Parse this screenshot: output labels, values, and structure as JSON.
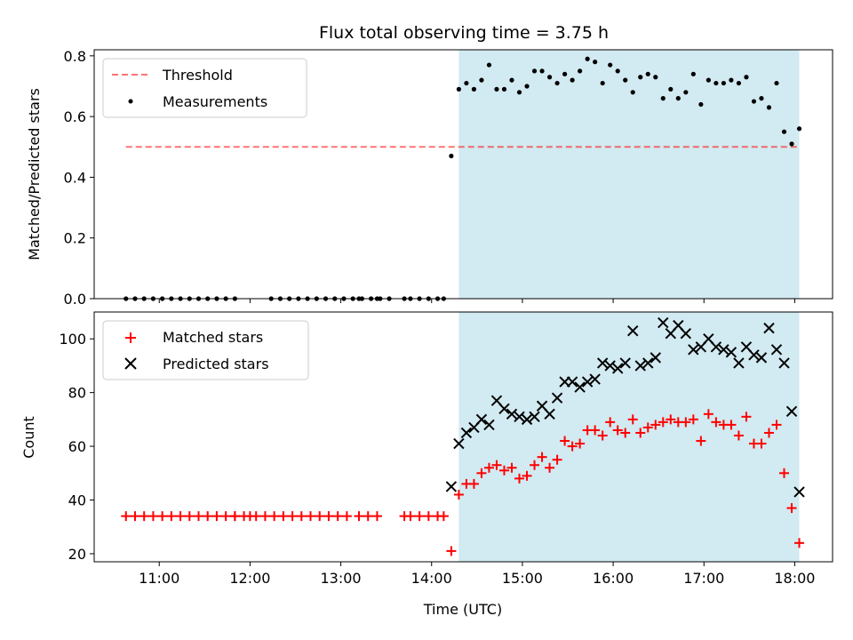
{
  "chart_data": [
    {
      "type": "scatter",
      "title": "Flux total observing time = 3.75 h",
      "xlabel": "",
      "ylabel": "Matched/Predicted stars",
      "ylim": [
        0,
        0.82
      ],
      "xlim": [
        "10:17",
        "18:25"
      ],
      "yticks": [
        "0.0",
        "0.2",
        "0.4",
        "0.6",
        "0.8"
      ],
      "legend_position": "top-left",
      "shaded_span": [
        "14:18",
        "18:03"
      ],
      "shade_color": "#add8e6",
      "threshold": {
        "name": "Threshold",
        "value": 0.5,
        "x_range": [
          "10:38",
          "18:03"
        ],
        "color": "#ff0000",
        "style": "dashed"
      },
      "series": [
        {
          "name": "Measurements",
          "color": "#000000",
          "marker": "dot",
          "points": [
            [
              "10:38",
              0
            ],
            [
              "10:44",
              0
            ],
            [
              "10:50",
              0
            ],
            [
              "10:56",
              0
            ],
            [
              "11:02",
              0
            ],
            [
              "11:08",
              0
            ],
            [
              "11:14",
              0
            ],
            [
              "11:20",
              0
            ],
            [
              "11:26",
              0
            ],
            [
              "11:32",
              0
            ],
            [
              "11:38",
              0
            ],
            [
              "11:44",
              0
            ],
            [
              "11:50",
              0
            ],
            [
              "12:14",
              0
            ],
            [
              "12:20",
              0
            ],
            [
              "12:26",
              0
            ],
            [
              "12:32",
              0
            ],
            [
              "12:38",
              0
            ],
            [
              "12:44",
              0
            ],
            [
              "12:50",
              0
            ],
            [
              "12:56",
              0
            ],
            [
              "13:02",
              0
            ],
            [
              "13:08",
              0
            ],
            [
              "13:14",
              0
            ],
            [
              "13:20",
              0
            ],
            [
              "13:26",
              0
            ],
            [
              "13:32",
              0
            ],
            [
              "13:12",
              0
            ],
            [
              "13:24",
              0
            ],
            [
              "13:42",
              0
            ],
            [
              "13:46",
              0
            ],
            [
              "13:52",
              0
            ],
            [
              "13:58",
              0
            ],
            [
              "14:04",
              0
            ],
            [
              "14:08",
              0
            ],
            [
              "14:13",
              0.47
            ],
            [
              "14:18",
              0.69
            ],
            [
              "14:23",
              0.71
            ],
            [
              "14:28",
              0.69
            ],
            [
              "14:33",
              0.72
            ],
            [
              "14:38",
              0.77
            ],
            [
              "14:43",
              0.69
            ],
            [
              "14:48",
              0.69
            ],
            [
              "14:53",
              0.72
            ],
            [
              "14:58",
              0.68
            ],
            [
              "15:03",
              0.7
            ],
            [
              "15:08",
              0.75
            ],
            [
              "15:13",
              0.75
            ],
            [
              "15:18",
              0.73
            ],
            [
              "15:23",
              0.71
            ],
            [
              "15:28",
              0.74
            ],
            [
              "15:33",
              0.72
            ],
            [
              "15:38",
              0.75
            ],
            [
              "15:43",
              0.79
            ],
            [
              "15:48",
              0.78
            ],
            [
              "15:53",
              0.71
            ],
            [
              "15:58",
              0.77
            ],
            [
              "16:03",
              0.75
            ],
            [
              "16:08",
              0.72
            ],
            [
              "16:13",
              0.68
            ],
            [
              "16:18",
              0.73
            ],
            [
              "16:23",
              0.74
            ],
            [
              "16:28",
              0.73
            ],
            [
              "16:33",
              0.66
            ],
            [
              "16:38",
              0.69
            ],
            [
              "16:43",
              0.66
            ],
            [
              "16:48",
              0.68
            ],
            [
              "16:53",
              0.74
            ],
            [
              "16:58",
              0.64
            ],
            [
              "17:03",
              0.72
            ],
            [
              "17:08",
              0.71
            ],
            [
              "17:13",
              0.71
            ],
            [
              "17:18",
              0.72
            ],
            [
              "17:23",
              0.71
            ],
            [
              "17:28",
              0.73
            ],
            [
              "17:33",
              0.65
            ],
            [
              "17:38",
              0.66
            ],
            [
              "17:43",
              0.63
            ],
            [
              "17:48",
              0.71
            ],
            [
              "17:53",
              0.55
            ],
            [
              "17:58",
              0.51
            ],
            [
              "18:03",
              0.56
            ]
          ]
        }
      ]
    },
    {
      "type": "scatter",
      "title": "",
      "xlabel": "Time (UTC)",
      "ylabel": "Count",
      "ylim": [
        17,
        110
      ],
      "xlim": [
        "10:17",
        "18:25"
      ],
      "yticks": [
        "20",
        "40",
        "60",
        "80",
        "100"
      ],
      "xticks": [
        "11:00",
        "12:00",
        "13:00",
        "14:00",
        "15:00",
        "16:00",
        "17:00",
        "18:00"
      ],
      "legend_position": "top-left",
      "shaded_span": [
        "14:18",
        "18:03"
      ],
      "shade_color": "#add8e6",
      "series": [
        {
          "name": "Matched stars",
          "color": "#ff0000",
          "marker": "plus",
          "points": [
            [
              "10:38",
              34
            ],
            [
              "10:44",
              34
            ],
            [
              "10:50",
              34
            ],
            [
              "10:56",
              34
            ],
            [
              "11:02",
              34
            ],
            [
              "11:08",
              34
            ],
            [
              "11:14",
              34
            ],
            [
              "11:20",
              34
            ],
            [
              "11:26",
              34
            ],
            [
              "11:32",
              34
            ],
            [
              "11:38",
              34
            ],
            [
              "11:44",
              34
            ],
            [
              "11:50",
              34
            ],
            [
              "11:50",
              34
            ],
            [
              "11:56",
              34
            ],
            [
              "12:00",
              34
            ],
            [
              "12:04",
              34
            ],
            [
              "12:10",
              34
            ],
            [
              "12:16",
              34
            ],
            [
              "12:22",
              34
            ],
            [
              "12:28",
              34
            ],
            [
              "12:34",
              34
            ],
            [
              "12:40",
              34
            ],
            [
              "12:46",
              34
            ],
            [
              "12:52",
              34
            ],
            [
              "12:58",
              34
            ],
            [
              "13:04",
              34
            ],
            [
              "13:12",
              34
            ],
            [
              "13:18",
              34
            ],
            [
              "13:24",
              34
            ],
            [
              "13:42",
              34
            ],
            [
              "13:46",
              34
            ],
            [
              "13:52",
              34
            ],
            [
              "13:58",
              34
            ],
            [
              "14:04",
              34
            ],
            [
              "14:08",
              34
            ],
            [
              "14:13",
              21
            ],
            [
              "14:18",
              42
            ],
            [
              "14:23",
              46
            ],
            [
              "14:28",
              46
            ],
            [
              "14:33",
              50
            ],
            [
              "14:38",
              52
            ],
            [
              "14:43",
              53
            ],
            [
              "14:48",
              51
            ],
            [
              "14:53",
              52
            ],
            [
              "14:58",
              48
            ],
            [
              "15:03",
              49
            ],
            [
              "15:08",
              53
            ],
            [
              "15:13",
              56
            ],
            [
              "15:18",
              52
            ],
            [
              "15:23",
              55
            ],
            [
              "15:28",
              62
            ],
            [
              "15:33",
              60
            ],
            [
              "15:38",
              61
            ],
            [
              "15:43",
              66
            ],
            [
              "15:48",
              66
            ],
            [
              "15:53",
              64
            ],
            [
              "15:58",
              69
            ],
            [
              "16:03",
              66
            ],
            [
              "16:08",
              65
            ],
            [
              "16:13",
              70
            ],
            [
              "16:18",
              65
            ],
            [
              "16:23",
              67
            ],
            [
              "16:28",
              68
            ],
            [
              "16:33",
              69
            ],
            [
              "16:38",
              70
            ],
            [
              "16:43",
              69
            ],
            [
              "16:48",
              69
            ],
            [
              "16:53",
              70
            ],
            [
              "16:58",
              62
            ],
            [
              "17:03",
              72
            ],
            [
              "17:08",
              69
            ],
            [
              "17:13",
              68
            ],
            [
              "17:18",
              68
            ],
            [
              "17:23",
              64
            ],
            [
              "17:28",
              71
            ],
            [
              "17:33",
              61
            ],
            [
              "17:38",
              61
            ],
            [
              "17:43",
              65
            ],
            [
              "17:48",
              68
            ],
            [
              "17:53",
              50
            ],
            [
              "17:58",
              37
            ],
            [
              "18:03",
              24
            ]
          ]
        },
        {
          "name": "Predicted stars",
          "color": "#000000",
          "marker": "x",
          "points": [
            [
              "14:13",
              45
            ],
            [
              "14:18",
              61
            ],
            [
              "14:23",
              65
            ],
            [
              "14:28",
              67
            ],
            [
              "14:33",
              70
            ],
            [
              "14:38",
              68
            ],
            [
              "14:43",
              77
            ],
            [
              "14:48",
              74
            ],
            [
              "14:53",
              72
            ],
            [
              "14:58",
              71
            ],
            [
              "15:03",
              70
            ],
            [
              "15:08",
              71
            ],
            [
              "15:13",
              75
            ],
            [
              "15:18",
              72
            ],
            [
              "15:23",
              78
            ],
            [
              "15:28",
              84
            ],
            [
              "15:33",
              84
            ],
            [
              "15:38",
              82
            ],
            [
              "15:43",
              84
            ],
            [
              "15:48",
              85
            ],
            [
              "15:53",
              91
            ],
            [
              "15:58",
              90
            ],
            [
              "16:03",
              89
            ],
            [
              "16:08",
              91
            ],
            [
              "16:13",
              103
            ],
            [
              "16:18",
              90
            ],
            [
              "16:23",
              91
            ],
            [
              "16:28",
              93
            ],
            [
              "16:33",
              106
            ],
            [
              "16:38",
              102
            ],
            [
              "16:43",
              105
            ],
            [
              "16:48",
              102
            ],
            [
              "16:53",
              96
            ],
            [
              "16:58",
              97
            ],
            [
              "17:03",
              100
            ],
            [
              "17:08",
              97
            ],
            [
              "17:13",
              96
            ],
            [
              "17:18",
              95
            ],
            [
              "17:23",
              91
            ],
            [
              "17:28",
              97
            ],
            [
              "17:33",
              94
            ],
            [
              "17:38",
              93
            ],
            [
              "17:43",
              104
            ],
            [
              "17:48",
              96
            ],
            [
              "17:53",
              91
            ],
            [
              "17:58",
              73
            ],
            [
              "18:03",
              43
            ]
          ]
        }
      ]
    }
  ]
}
